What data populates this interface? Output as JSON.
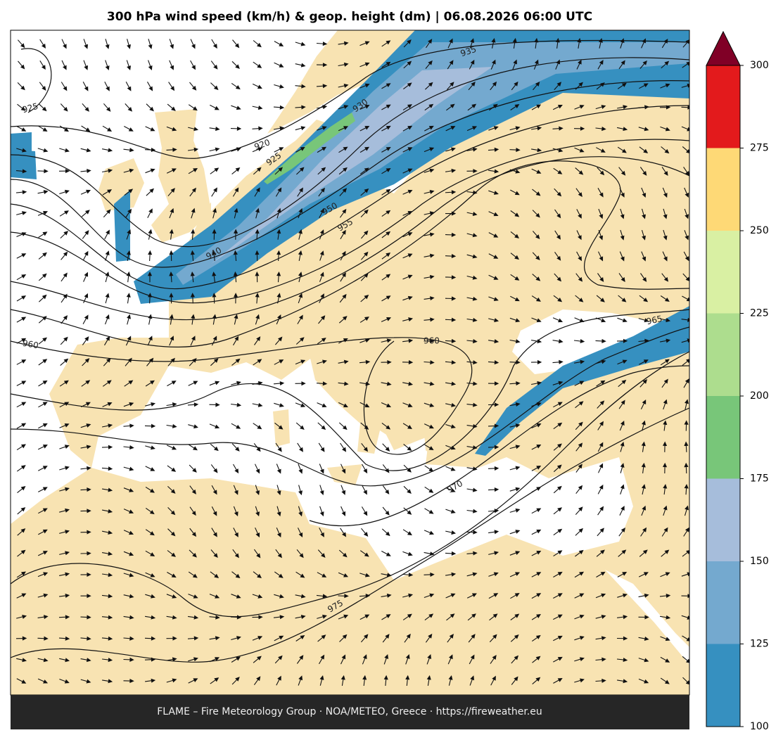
{
  "title": "300 hPa wind speed (km/h) & geop. height (dm)  |  06.08.2026 06:00 UTC",
  "footer": "FLAME – Fire Meteorology Group · NOA/METEO, Greece · https://fireweather.eu",
  "colorbar": {
    "ticks": [
      100,
      125,
      150,
      175,
      200,
      225,
      250,
      275,
      300
    ],
    "colors": [
      "#3690c0",
      "#74a9cf",
      "#a6bddb",
      "#78c679",
      "#addd8e",
      "#d9f0a3",
      "#fed976",
      "#e31a1c"
    ],
    "extend_color": "#800026",
    "lim": [
      100,
      300
    ]
  },
  "contour_labels": [
    "925",
    "920",
    "925",
    "930",
    "935",
    "940",
    "950",
    "955",
    "960",
    "960",
    "965",
    "970",
    "975"
  ]
}
